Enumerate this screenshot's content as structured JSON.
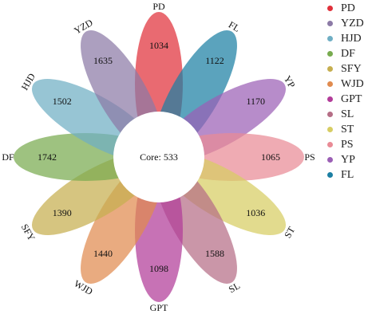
{
  "core": {
    "label": "Core: 533"
  },
  "petals": [
    {
      "name": "PD",
      "count": "1034",
      "color": "#e0303a"
    },
    {
      "name": "FL",
      "count": "1122",
      "color": "#1c7fa3"
    },
    {
      "name": "YP",
      "count": "1170",
      "color": "#9b5fb5"
    },
    {
      "name": "PS",
      "count": "1065",
      "color": "#e98b96"
    },
    {
      "name": "ST",
      "count": "1036",
      "color": "#d7cd63"
    },
    {
      "name": "SL",
      "count": "1588",
      "color": "#b56e86"
    },
    {
      "name": "GPT",
      "count": "1098",
      "color": "#b23c99"
    },
    {
      "name": "WJD",
      "count": "1440",
      "color": "#e08b4f"
    },
    {
      "name": "SFY",
      "count": "1390",
      "color": "#c6ae4f"
    },
    {
      "name": "DF",
      "count": "1742",
      "color": "#78ab4f"
    },
    {
      "name": "HJD",
      "count": "1502",
      "color": "#6faec4"
    },
    {
      "name": "YZD",
      "count": "1635",
      "color": "#8c7aa6"
    }
  ],
  "legend": {
    "items": [
      {
        "label": "PD",
        "color": "#e0303a"
      },
      {
        "label": "YZD",
        "color": "#8c7aa6"
      },
      {
        "label": "HJD",
        "color": "#6faec4"
      },
      {
        "label": "DF",
        "color": "#78ab4f"
      },
      {
        "label": "SFY",
        "color": "#c6ae4f"
      },
      {
        "label": "WJD",
        "color": "#e08b4f"
      },
      {
        "label": "GPT",
        "color": "#b23c99"
      },
      {
        "label": "SL",
        "color": "#b56e86"
      },
      {
        "label": "ST",
        "color": "#d7cd63"
      },
      {
        "label": "PS",
        "color": "#e98b96"
      },
      {
        "label": "YP",
        "color": "#9b5fb5"
      },
      {
        "label": "FL",
        "color": "#1c7fa3"
      }
    ]
  }
}
